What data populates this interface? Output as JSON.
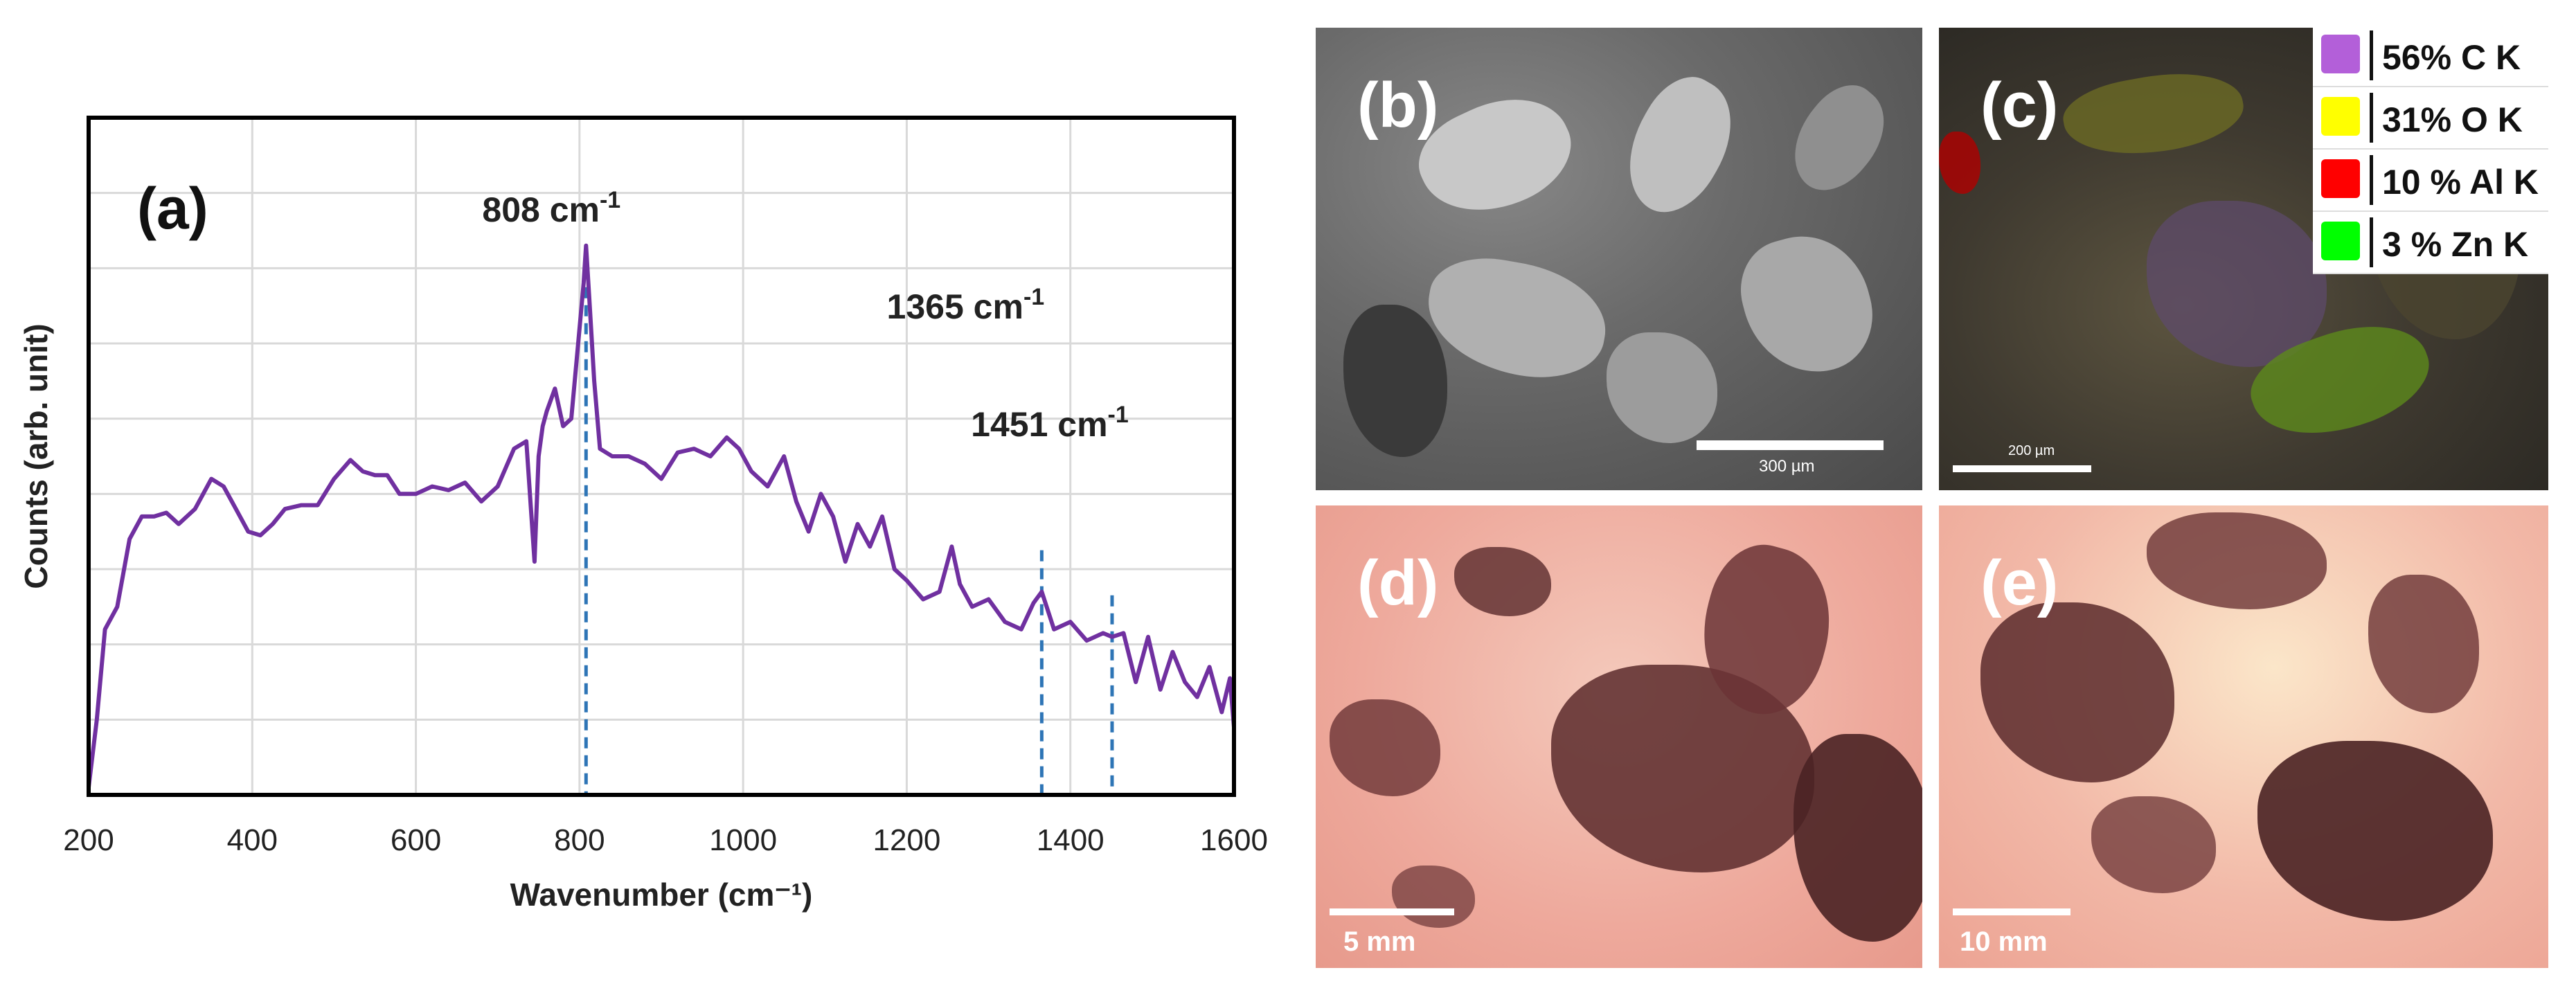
{
  "chart_data": {
    "type": "line",
    "panel_label": "(a)",
    "xlabel": "Wavenumber (cm⁻¹)",
    "ylabel": "Counts (arb. unit)",
    "xlim": [
      200,
      1600
    ],
    "xticks": [
      200,
      400,
      600,
      800,
      1000,
      1200,
      1400,
      1600
    ],
    "ylim": [
      0,
      9
    ],
    "grid": true,
    "series": [
      {
        "color": "#7030a0",
        "x": [
          200,
          210,
          220,
          235,
          250,
          265,
          280,
          295,
          310,
          330,
          350,
          365,
          380,
          395,
          410,
          425,
          440,
          460,
          480,
          500,
          520,
          535,
          550,
          565,
          580,
          600,
          620,
          640,
          660,
          680,
          700,
          720,
          735,
          745,
          750,
          755,
          760,
          770,
          780,
          790,
          800,
          805,
          808,
          812,
          818,
          825,
          840,
          860,
          880,
          900,
          920,
          940,
          960,
          980,
          995,
          1010,
          1030,
          1050,
          1065,
          1080,
          1095,
          1110,
          1125,
          1140,
          1155,
          1170,
          1185,
          1200,
          1220,
          1240,
          1255,
          1265,
          1280,
          1300,
          1320,
          1340,
          1355,
          1365,
          1380,
          1400,
          1420,
          1440,
          1451,
          1465,
          1480,
          1495,
          1510,
          1525,
          1540,
          1555,
          1570,
          1585,
          1595,
          1600
        ],
        "y": [
          0.1,
          1.0,
          2.2,
          2.5,
          3.4,
          3.7,
          3.7,
          3.75,
          3.6,
          3.8,
          4.2,
          4.1,
          3.8,
          3.5,
          3.45,
          3.6,
          3.8,
          3.85,
          3.85,
          4.2,
          4.45,
          4.3,
          4.25,
          4.25,
          4.0,
          4.0,
          4.1,
          4.05,
          4.15,
          3.9,
          4.1,
          4.6,
          4.7,
          3.1,
          4.5,
          4.9,
          5.1,
          5.4,
          4.9,
          5.0,
          6.2,
          6.8,
          7.3,
          6.6,
          5.5,
          4.6,
          4.5,
          4.5,
          4.4,
          4.2,
          4.55,
          4.6,
          4.5,
          4.75,
          4.6,
          4.3,
          4.1,
          4.5,
          3.9,
          3.5,
          4.0,
          3.7,
          3.1,
          3.6,
          3.3,
          3.7,
          3.0,
          2.85,
          2.6,
          2.7,
          3.3,
          2.8,
          2.5,
          2.6,
          2.3,
          2.2,
          2.55,
          2.7,
          2.2,
          2.3,
          2.05,
          2.15,
          2.1,
          2.15,
          1.5,
          2.1,
          1.4,
          1.9,
          1.5,
          1.3,
          1.7,
          1.1,
          1.55,
          0.9
        ]
      }
    ],
    "annotations": [
      {
        "x": 808,
        "label_base": "808 cm",
        "sup": "-1"
      },
      {
        "x": 1365,
        "label_base": "1365 cm",
        "sup": "-1"
      },
      {
        "x": 1451,
        "label_base": "1451 cm",
        "sup": "-1"
      }
    ],
    "dashed_color": "#2e75b6"
  },
  "panels": {
    "b": {
      "label": "(b)",
      "scale": "300 µm",
      "kind": "SEM image"
    },
    "c": {
      "label": "(c)",
      "scale": "200 µm",
      "kind": "EDS elemental map"
    },
    "d": {
      "label": "(d)",
      "scale": "5 mm",
      "kind": "optical micrograph"
    },
    "e": {
      "label": "(e)",
      "scale": "10 mm",
      "kind": "optical micrograph"
    }
  },
  "eds_legend": [
    {
      "text": "56% C K",
      "color": "#b35fd9"
    },
    {
      "text": "31% O K",
      "color": "#ffff00"
    },
    {
      "text": "10 % Al K",
      "color": "#ff0000"
    },
    {
      "text": "3 % Zn K",
      "color": "#00ff00"
    }
  ]
}
